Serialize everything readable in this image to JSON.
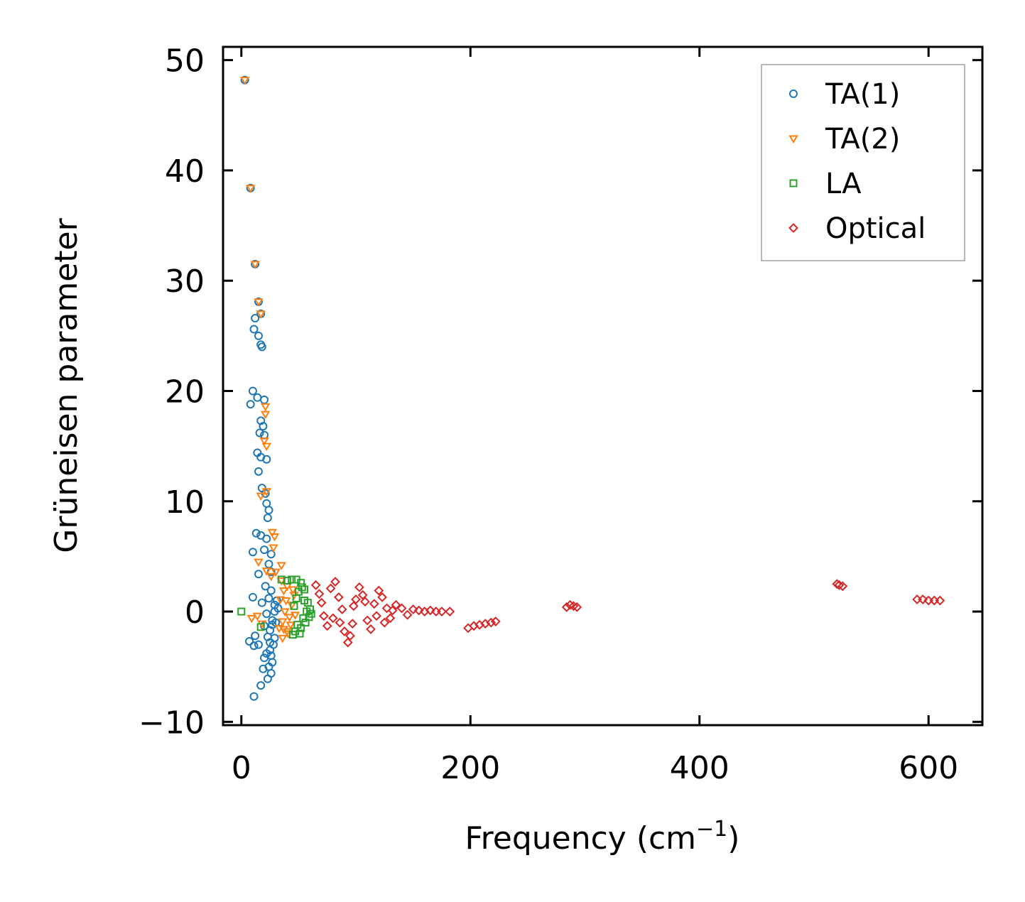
{
  "chart_data": {
    "type": "scatter",
    "xlabel": "Frequency (cm",
    "xlabel_sup": "−1",
    "xlabel_close": ")",
    "ylabel": "Grüneisen parameter",
    "xlim": [
      -16,
      647
    ],
    "ylim": [
      -10.3,
      51.2
    ],
    "xticks": [
      0,
      200,
      400,
      600
    ],
    "xtick_labels": [
      "0",
      "200",
      "400",
      "600"
    ],
    "yticks": [
      -10,
      0,
      10,
      20,
      30,
      40,
      50
    ],
    "ytick_labels": [
      "−10",
      "0",
      "10",
      "20",
      "30",
      "40",
      "50"
    ],
    "legend_position": "top-right",
    "series": [
      {
        "name": "TA(1)",
        "marker": "circle",
        "color": "#1f77b4",
        "points": [
          [
            3,
            48.2
          ],
          [
            8,
            38.4
          ],
          [
            12,
            31.5
          ],
          [
            15,
            28.1
          ],
          [
            17,
            27.0
          ],
          [
            12,
            26.6
          ],
          [
            11,
            25.6
          ],
          [
            15,
            25.0
          ],
          [
            17,
            24.2
          ],
          [
            18,
            24.0
          ],
          [
            10,
            20.0
          ],
          [
            14,
            19.4
          ],
          [
            20,
            19.2
          ],
          [
            8,
            18.8
          ],
          [
            17,
            17.3
          ],
          [
            19,
            16.8
          ],
          [
            16,
            16.2
          ],
          [
            20,
            16.0
          ],
          [
            14,
            14.4
          ],
          [
            17,
            14.0
          ],
          [
            22,
            13.8
          ],
          [
            15,
            12.7
          ],
          [
            18,
            11.2
          ],
          [
            21,
            10.7
          ],
          [
            22,
            9.8
          ],
          [
            24,
            9.2
          ],
          [
            23,
            8.5
          ],
          [
            13,
            7.1
          ],
          [
            17,
            6.9
          ],
          [
            22,
            6.6
          ],
          [
            10,
            5.4
          ],
          [
            20,
            5.6
          ],
          [
            26,
            5.2
          ],
          [
            24,
            4.3
          ],
          [
            26,
            3.6
          ],
          [
            15,
            3.4
          ],
          [
            21,
            2.3
          ],
          [
            26,
            1.9
          ],
          [
            10,
            1.3
          ],
          [
            18,
            0.8
          ],
          [
            24,
            1.2
          ],
          [
            29,
            0.6
          ],
          [
            22,
            -0.2
          ],
          [
            27,
            -0.8
          ],
          [
            20,
            -1.3
          ],
          [
            25,
            -1.7
          ],
          [
            23,
            -2.3
          ],
          [
            12,
            -2.2
          ],
          [
            7,
            -2.7
          ],
          [
            29,
            -2.4
          ],
          [
            15,
            -3.0
          ],
          [
            11,
            -3.1
          ],
          [
            25,
            -3.5
          ],
          [
            22,
            -3.8
          ],
          [
            20,
            -4.2
          ],
          [
            27,
            -4.6
          ],
          [
            24,
            -5.0
          ],
          [
            19,
            -5.2
          ],
          [
            26,
            -5.6
          ],
          [
            23,
            -6.1
          ],
          [
            17,
            -6.7
          ],
          [
            11,
            -7.7
          ],
          [
            26,
            -4.0
          ],
          [
            28,
            -3.0
          ],
          [
            30,
            -1.0
          ],
          [
            32,
            0.3
          ],
          [
            31,
            1.0
          ],
          [
            29,
            0.0
          ],
          [
            27,
            -1.2
          ],
          [
            25,
            -2.8
          ]
        ]
      },
      {
        "name": "TA(2)",
        "marker": "triangle-down",
        "color": "#ff7f0e",
        "points": [
          [
            3,
            48.2
          ],
          [
            8,
            38.4
          ],
          [
            12,
            31.5
          ],
          [
            15,
            28.1
          ],
          [
            17,
            27.0
          ],
          [
            21,
            17.9
          ],
          [
            21,
            18.6
          ],
          [
            20,
            15.5
          ],
          [
            22,
            15.0
          ],
          [
            17,
            10.5
          ],
          [
            22,
            10.9
          ],
          [
            27,
            7.2
          ],
          [
            29,
            6.8
          ],
          [
            28,
            5.8
          ],
          [
            35,
            4.2
          ],
          [
            15,
            4.5
          ],
          [
            22,
            3.7
          ],
          [
            26,
            3.2
          ],
          [
            30,
            3.6
          ],
          [
            35,
            2.8
          ],
          [
            37,
            1.9
          ],
          [
            34,
            1.1
          ],
          [
            14,
            -0.4
          ],
          [
            9,
            -0.6
          ],
          [
            18,
            -1.1
          ],
          [
            33,
            -1.5
          ],
          [
            36,
            -2.4
          ],
          [
            40,
            -1.8
          ],
          [
            42,
            -0.5
          ],
          [
            44,
            0.6
          ],
          [
            46,
            1.5
          ],
          [
            38,
            0.0
          ],
          [
            40,
            2.3
          ],
          [
            36,
            -0.9
          ],
          [
            43,
            -1.2
          ],
          [
            45,
            2.0
          ],
          [
            41,
            -2.0
          ],
          [
            39,
            1.0
          ],
          [
            37,
            -1.6
          ],
          [
            47,
            -0.3
          ]
        ]
      },
      {
        "name": "LA",
        "marker": "square",
        "color": "#2ca02c",
        "points": [
          [
            0,
            0.0
          ],
          [
            17,
            -1.4
          ],
          [
            35,
            2.9
          ],
          [
            40,
            2.8
          ],
          [
            44,
            2.9
          ],
          [
            48,
            2.9
          ],
          [
            52,
            2.6
          ],
          [
            50,
            1.8
          ],
          [
            55,
            1.0
          ],
          [
            57,
            0.0
          ],
          [
            54,
            -0.6
          ],
          [
            49,
            -1.2
          ],
          [
            47,
            -1.8
          ],
          [
            51,
            -2.0
          ],
          [
            45,
            -2.1
          ],
          [
            58,
            0.8
          ],
          [
            56,
            -1.0
          ],
          [
            53,
            2.2
          ],
          [
            46,
            0.5
          ],
          [
            60,
            0.2
          ],
          [
            59,
            -0.5
          ],
          [
            52,
            -1.5
          ],
          [
            48,
            1.2
          ],
          [
            55,
            2.0
          ],
          [
            61,
            -0.2
          ]
        ]
      },
      {
        "name": "Optical",
        "marker": "diamond",
        "color": "#d62728",
        "points": [
          [
            65,
            2.4
          ],
          [
            68,
            1.6
          ],
          [
            70,
            0.8
          ],
          [
            72,
            -0.4
          ],
          [
            75,
            -1.3
          ],
          [
            78,
            2.1
          ],
          [
            82,
            2.7
          ],
          [
            85,
            1.3
          ],
          [
            88,
            0.2
          ],
          [
            90,
            -1.8
          ],
          [
            93,
            -2.8
          ],
          [
            95,
            -2.2
          ],
          [
            97,
            -1.1
          ],
          [
            100,
            1.1
          ],
          [
            103,
            2.2
          ],
          [
            106,
            1.5
          ],
          [
            110,
            -0.8
          ],
          [
            113,
            -1.6
          ],
          [
            116,
            0.7
          ],
          [
            120,
            1.9
          ],
          [
            123,
            1.3
          ],
          [
            127,
            0.3
          ],
          [
            130,
            -0.6
          ],
          [
            135,
            0.6
          ],
          [
            140,
            0.3
          ],
          [
            145,
            -0.3
          ],
          [
            150,
            0.2
          ],
          [
            155,
            0.1
          ],
          [
            160,
            0.0
          ],
          [
            165,
            0.1
          ],
          [
            170,
            0.0
          ],
          [
            175,
            0.0
          ],
          [
            182,
            0.0
          ],
          [
            80,
            -0.6
          ],
          [
            86,
            -1.0
          ],
          [
            98,
            0.5
          ],
          [
            108,
            0.9
          ],
          [
            118,
            -0.4
          ],
          [
            125,
            -1.0
          ],
          [
            132,
            0.1
          ],
          [
            198,
            -1.5
          ],
          [
            203,
            -1.3
          ],
          [
            208,
            -1.2
          ],
          [
            213,
            -1.1
          ],
          [
            218,
            -1.0
          ],
          [
            222,
            -0.9
          ],
          [
            284,
            0.4
          ],
          [
            287,
            0.6
          ],
          [
            290,
            0.5
          ],
          [
            293,
            0.4
          ],
          [
            520,
            2.5
          ],
          [
            522,
            2.4
          ],
          [
            525,
            2.3
          ],
          [
            590,
            1.1
          ],
          [
            595,
            1.1
          ],
          [
            600,
            1.0
          ],
          [
            605,
            1.0
          ],
          [
            610,
            1.0
          ]
        ]
      }
    ]
  }
}
